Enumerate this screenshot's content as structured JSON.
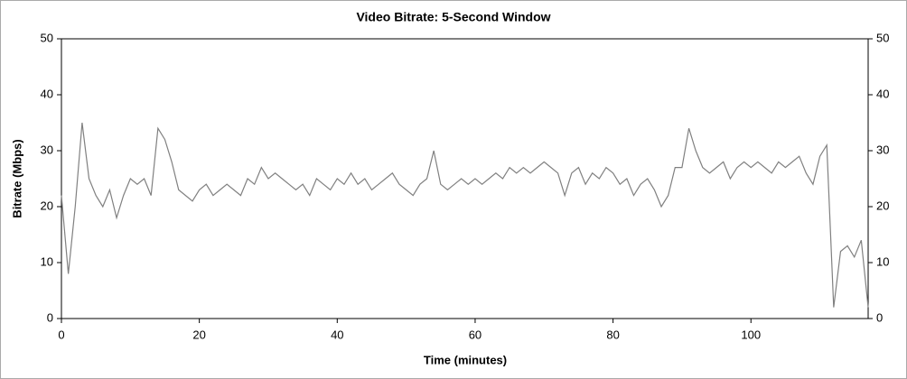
{
  "chart_data": {
    "type": "line",
    "title": "Video Bitrate: 5-Second Window",
    "x_label": "Time (minutes)",
    "y_label": "Bitrate (Mbps)",
    "x": [
      0,
      1,
      2,
      3,
      4,
      5,
      6,
      7,
      8,
      9,
      10,
      11,
      12,
      13,
      14,
      15,
      16,
      17,
      18,
      19,
      20,
      21,
      22,
      23,
      24,
      25,
      26,
      27,
      28,
      29,
      30,
      31,
      32,
      33,
      34,
      35,
      36,
      37,
      38,
      39,
      40,
      41,
      42,
      43,
      44,
      45,
      46,
      47,
      48,
      49,
      50,
      51,
      52,
      53,
      54,
      55,
      56,
      57,
      58,
      59,
      60,
      61,
      62,
      63,
      64,
      65,
      66,
      67,
      68,
      69,
      70,
      71,
      72,
      73,
      74,
      75,
      76,
      77,
      78,
      79,
      80,
      81,
      82,
      83,
      84,
      85,
      86,
      87,
      88,
      89,
      90,
      91,
      92,
      93,
      94,
      95,
      96,
      97,
      98,
      99,
      100,
      101,
      102,
      103,
      104,
      105,
      106,
      107,
      108,
      109,
      110,
      111,
      112,
      113,
      114,
      115,
      116,
      117
    ],
    "series": [
      {
        "name": "Bitrate",
        "color": "#808080",
        "values": [
          22,
          8,
          20,
          35,
          25,
          22,
          20,
          23,
          18,
          22,
          25,
          24,
          25,
          22,
          34,
          32,
          28,
          23,
          22,
          21,
          23,
          24,
          22,
          23,
          24,
          23,
          22,
          25,
          24,
          27,
          25,
          26,
          25,
          24,
          23,
          24,
          22,
          25,
          24,
          23,
          25,
          24,
          26,
          24,
          25,
          23,
          24,
          25,
          26,
          24,
          23,
          22,
          24,
          25,
          30,
          24,
          23,
          24,
          25,
          24,
          25,
          24,
          25,
          26,
          25,
          27,
          26,
          27,
          26,
          27,
          28,
          27,
          26,
          22,
          26,
          27,
          24,
          26,
          25,
          27,
          26,
          24,
          25,
          22,
          24,
          25,
          23,
          20,
          22,
          27,
          27,
          34,
          30,
          27,
          26,
          27,
          28,
          25,
          27,
          28,
          27,
          28,
          27,
          26,
          28,
          27,
          28,
          29,
          26,
          24,
          29,
          31,
          2,
          12,
          13,
          11,
          14,
          2
        ]
      }
    ],
    "xlim": [
      0,
      117
    ],
    "ylim": [
      0,
      50
    ],
    "xticks": [
      0,
      20,
      40,
      60,
      80,
      100
    ],
    "yticks": [
      0,
      10,
      20,
      30,
      40,
      50
    ]
  }
}
